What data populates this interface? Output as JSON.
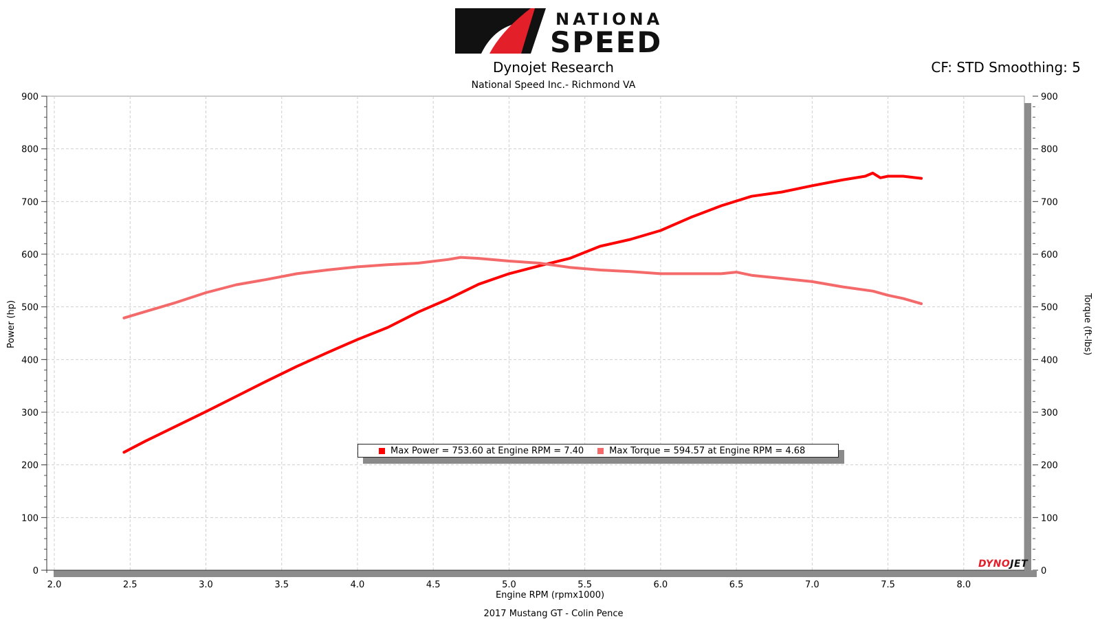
{
  "header": {
    "logo_text_top": "NATIONAL",
    "logo_text_bottom": "SPEED",
    "title": "Dynojet Research",
    "subtitle": "National Speed Inc.- Richmond VA",
    "cf_text": "CF: STD Smoothing: 5"
  },
  "footer": {
    "run_label": "2017 Mustang GT - Colin Pence"
  },
  "legend": {
    "power_text": "Max Power = 753.60 at Engine RPM = 7.40",
    "torque_text": "Max Torque = 594.57 at Engine RPM = 4.68"
  },
  "brand": {
    "part1": "DYNO",
    "part2": "JET"
  },
  "colors": {
    "power": "#ff0000",
    "torque": "#f46a6a",
    "grid": "#cfcfcf",
    "axis_bar": "#8c8c8c"
  },
  "chart_data": {
    "type": "line",
    "xlabel": "Engine RPM (rpmx1000)",
    "ylabel": "Power (hp)",
    "y2label": "Torque (ft-lbs)",
    "xlim": [
      1.95,
      8.4
    ],
    "ylim": [
      0,
      900
    ],
    "y2lim": [
      0,
      900
    ],
    "xticks": [
      2.0,
      2.5,
      3.0,
      3.5,
      4.0,
      4.5,
      5.0,
      5.5,
      6.0,
      6.5,
      7.0,
      7.5,
      8.0
    ],
    "xtick_labels": [
      "2.0",
      "2.5",
      "3.0",
      "3.5",
      "4.0",
      "4.5",
      "5.0",
      "5.5",
      "6.0",
      "6.5",
      "7.0",
      "7.5",
      "8.0"
    ],
    "yticks": [
      0,
      100,
      200,
      300,
      400,
      500,
      600,
      700,
      800,
      900
    ],
    "ytick_labels": [
      "0",
      "100",
      "200",
      "300",
      "400",
      "500",
      "600",
      "700",
      "800",
      "900"
    ],
    "grid": true,
    "legend_position": "lower-center",
    "series": [
      {
        "name": "Power",
        "axis": "left",
        "x": [
          2.46,
          2.6,
          2.8,
          3.0,
          3.2,
          3.4,
          3.6,
          3.8,
          4.0,
          4.2,
          4.4,
          4.6,
          4.8,
          5.0,
          5.2,
          5.4,
          5.6,
          5.8,
          6.0,
          6.2,
          6.4,
          6.6,
          6.8,
          7.0,
          7.2,
          7.35,
          7.4,
          7.45,
          7.5,
          7.6,
          7.72
        ],
        "values": [
          224,
          245,
          273,
          301,
          330,
          359,
          387,
          413,
          438,
          461,
          490,
          515,
          543,
          563,
          578,
          592,
          615,
          628,
          645,
          670,
          692,
          710,
          718,
          730,
          741,
          748,
          754,
          745,
          748,
          748,
          744
        ]
      },
      {
        "name": "Torque",
        "axis": "right",
        "x": [
          2.46,
          2.6,
          2.8,
          3.0,
          3.2,
          3.4,
          3.6,
          3.8,
          4.0,
          4.2,
          4.4,
          4.6,
          4.68,
          4.8,
          5.0,
          5.2,
          5.4,
          5.6,
          5.8,
          6.0,
          6.2,
          6.4,
          6.5,
          6.6,
          6.8,
          7.0,
          7.2,
          7.4,
          7.5,
          7.6,
          7.72
        ],
        "values": [
          479,
          491,
          508,
          527,
          542,
          552,
          563,
          570,
          576,
          580,
          583,
          590,
          594,
          592,
          587,
          583,
          575,
          570,
          567,
          563,
          563,
          563,
          566,
          560,
          554,
          548,
          538,
          530,
          522,
          516,
          506
        ]
      }
    ]
  }
}
